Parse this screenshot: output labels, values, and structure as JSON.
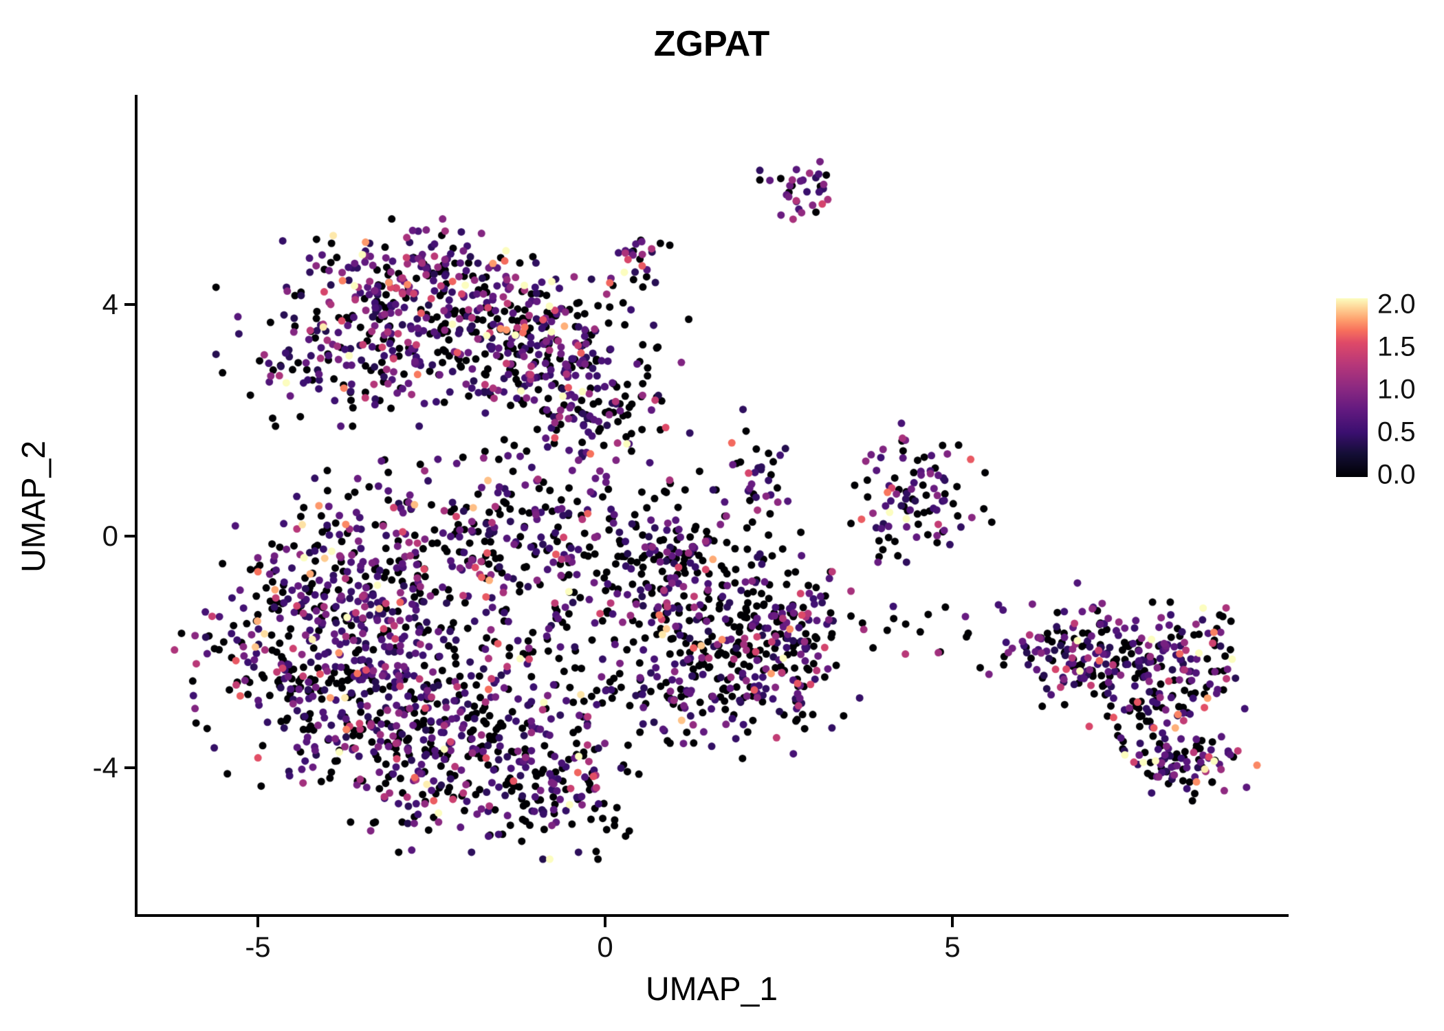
{
  "page": {
    "background": "#ffffff"
  },
  "chart_data": {
    "type": "scatter",
    "title": "ZGPAT",
    "xlabel": "UMAP_1",
    "ylabel": "UMAP_2",
    "xlim": [
      -6.73,
      9.8
    ],
    "ylim": [
      -6.53,
      7.6
    ],
    "grid": false,
    "legend_position": "right",
    "point_radius_px": 5.5,
    "x_ticks": [
      {
        "value": -5,
        "label": "-5"
      },
      {
        "value": 0,
        "label": "0"
      },
      {
        "value": 5,
        "label": "5"
      }
    ],
    "y_ticks": [
      {
        "value": 4,
        "label": "4"
      },
      {
        "value": 0,
        "label": "0"
      },
      {
        "value": -4,
        "label": "-4"
      }
    ],
    "colormap": {
      "name": "magma",
      "stops": [
        {
          "t": 0.0,
          "c": "#000004"
        },
        {
          "t": 0.13,
          "c": "#140e36"
        },
        {
          "t": 0.25,
          "c": "#3b0f70"
        },
        {
          "t": 0.38,
          "c": "#641a80"
        },
        {
          "t": 0.5,
          "c": "#8c2981"
        },
        {
          "t": 0.63,
          "c": "#b73779"
        },
        {
          "t": 0.75,
          "c": "#de4968"
        },
        {
          "t": 0.82,
          "c": "#f7705c"
        },
        {
          "t": 0.88,
          "c": "#fe9f6d"
        },
        {
          "t": 0.94,
          "c": "#fecf92"
        },
        {
          "t": 1.0,
          "c": "#fcfdbf"
        }
      ]
    },
    "colorbar": {
      "min": 0.0,
      "max": 2.0,
      "tick_labels": [
        "2.0",
        "1.5",
        "1.0",
        "0.5",
        "0.0"
      ]
    },
    "clusters": [
      {
        "name": "topleft-a",
        "cx": -2.6,
        "cy": 4.4,
        "sx": 0.85,
        "sy": 0.45,
        "n": 200,
        "zero_frac": 0.3,
        "scale": 0.5
      },
      {
        "name": "topleft-b",
        "cx": -3.8,
        "cy": 3.1,
        "sx": 0.75,
        "sy": 0.5,
        "n": 150,
        "zero_frac": 0.35,
        "scale": 0.45
      },
      {
        "name": "topleft-c",
        "cx": -1.9,
        "cy": 3.4,
        "sx": 0.9,
        "sy": 0.55,
        "n": 190,
        "zero_frac": 0.4,
        "scale": 0.45
      },
      {
        "name": "topleft-d",
        "cx": -0.9,
        "cy": 2.8,
        "sx": 0.6,
        "sy": 0.7,
        "n": 120,
        "zero_frac": 0.45,
        "scale": 0.42
      },
      {
        "name": "topleft-e",
        "cx": -0.1,
        "cy": 2.4,
        "sx": 0.55,
        "sy": 0.85,
        "n": 140,
        "zero_frac": 0.5,
        "scale": 0.42
      },
      {
        "name": "streak",
        "cx": 0.5,
        "cy": 4.9,
        "sx": 0.18,
        "sy": 0.35,
        "n": 26,
        "zero_frac": 0.35,
        "scale": 0.45
      },
      {
        "name": "top-small",
        "cx": 2.9,
        "cy": 5.95,
        "sx": 0.28,
        "sy": 0.28,
        "n": 34,
        "zero_frac": 0.35,
        "scale": 0.42
      },
      {
        "name": "left-f",
        "cx": -4.4,
        "cy": -1.8,
        "sx": 0.75,
        "sy": 1.0,
        "n": 250,
        "zero_frac": 0.42,
        "scale": 0.45
      },
      {
        "name": "left-g",
        "cx": -3.1,
        "cy": -2.9,
        "sx": 0.85,
        "sy": 0.85,
        "n": 250,
        "zero_frac": 0.45,
        "scale": 0.45
      },
      {
        "name": "left-h",
        "cx": -3.2,
        "cy": -0.6,
        "sx": 0.9,
        "sy": 0.8,
        "n": 220,
        "zero_frac": 0.45,
        "scale": 0.45
      },
      {
        "name": "left-i",
        "cx": -1.9,
        "cy": -3.9,
        "sx": 0.95,
        "sy": 0.65,
        "n": 200,
        "zero_frac": 0.48,
        "scale": 0.45
      },
      {
        "name": "left-j",
        "cx": -1.1,
        "cy": -2.0,
        "sx": 0.95,
        "sy": 1.0,
        "n": 170,
        "zero_frac": 0.5,
        "scale": 0.42
      },
      {
        "name": "left-k",
        "cx": -1.2,
        "cy": 0.2,
        "sx": 0.8,
        "sy": 0.6,
        "n": 130,
        "zero_frac": 0.5,
        "scale": 0.42
      },
      {
        "name": "left-l",
        "cx": -0.7,
        "cy": -4.5,
        "sx": 0.55,
        "sy": 0.45,
        "n": 80,
        "zero_frac": 0.5,
        "scale": 0.45
      },
      {
        "name": "center-m",
        "cx": 1.4,
        "cy": -1.0,
        "sx": 0.8,
        "sy": 0.75,
        "n": 170,
        "zero_frac": 0.62,
        "scale": 0.4
      },
      {
        "name": "center-n",
        "cx": 1.8,
        "cy": -2.4,
        "sx": 0.8,
        "sy": 0.6,
        "n": 200,
        "zero_frac": 0.5,
        "scale": 0.5
      },
      {
        "name": "center-o",
        "cx": 0.8,
        "cy": -0.2,
        "sx": 0.5,
        "sy": 0.55,
        "n": 90,
        "zero_frac": 0.6,
        "scale": 0.4
      },
      {
        "name": "center-p",
        "cx": 2.7,
        "cy": -1.7,
        "sx": 0.35,
        "sy": 0.8,
        "n": 100,
        "zero_frac": 0.45,
        "scale": 0.55
      },
      {
        "name": "mid-small",
        "cx": 2.25,
        "cy": 1.25,
        "sx": 0.22,
        "sy": 0.4,
        "n": 30,
        "zero_frac": 0.45,
        "scale": 0.45
      },
      {
        "name": "right-top",
        "cx": 4.4,
        "cy": 0.75,
        "sx": 0.5,
        "sy": 0.5,
        "n": 95,
        "zero_frac": 0.4,
        "scale": 0.5
      },
      {
        "name": "sparse-chain",
        "cx": 4.4,
        "cy": -1.6,
        "sx": 1.0,
        "sy": 0.35,
        "n": 22,
        "zero_frac": 0.5,
        "scale": 0.45
      },
      {
        "name": "farright-q",
        "cx": 6.6,
        "cy": -1.9,
        "sx": 0.5,
        "sy": 0.35,
        "n": 90,
        "zero_frac": 0.4,
        "scale": 0.5
      },
      {
        "name": "farright-r",
        "cx": 7.5,
        "cy": -2.1,
        "sx": 0.6,
        "sy": 0.4,
        "n": 110,
        "zero_frac": 0.42,
        "scale": 0.5
      },
      {
        "name": "farright-s",
        "cx": 7.9,
        "cy": -3.1,
        "sx": 0.4,
        "sy": 0.5,
        "n": 90,
        "zero_frac": 0.42,
        "scale": 0.5
      },
      {
        "name": "farright-t",
        "cx": 8.4,
        "cy": -3.9,
        "sx": 0.5,
        "sy": 0.28,
        "n": 70,
        "zero_frac": 0.42,
        "scale": 0.5
      },
      {
        "name": "farright-u",
        "cx": 8.6,
        "cy": -2.1,
        "sx": 0.3,
        "sy": 0.4,
        "n": 45,
        "zero_frac": 0.4,
        "scale": 0.5
      }
    ]
  }
}
